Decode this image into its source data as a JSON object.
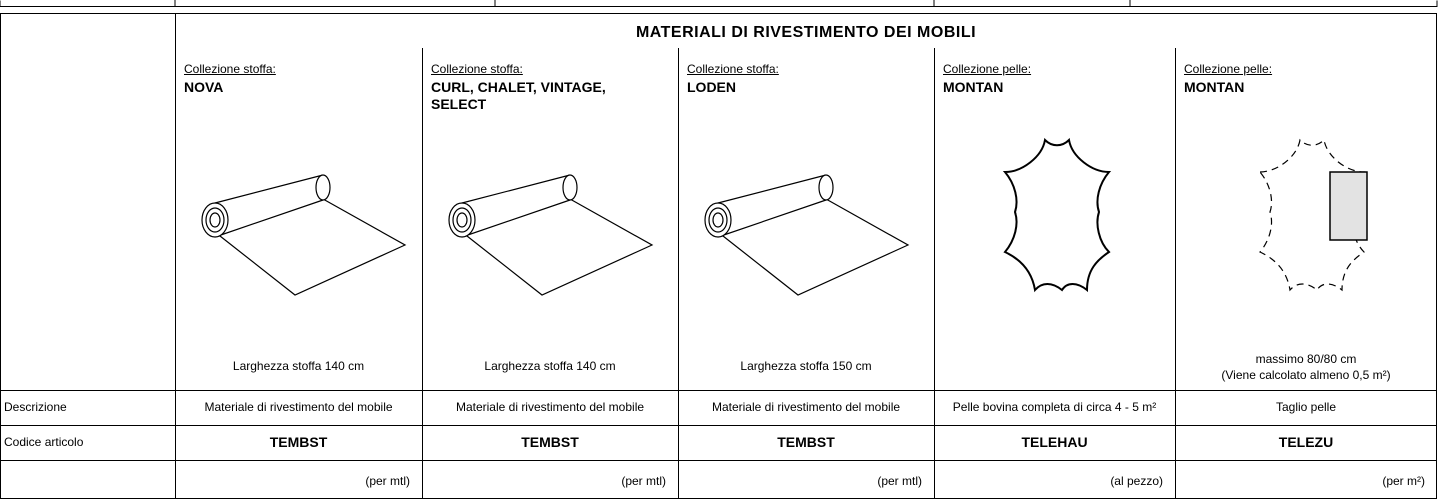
{
  "title": "MATERIALI DI RIVESTIMENTO DEI MOBILI",
  "row_labels": {
    "description": "Descrizione",
    "code": "Codice articolo"
  },
  "columns": [
    {
      "label": "Collezione stoffa:",
      "name": "NOVA",
      "note": "Larghezza stoffa 140 cm",
      "description": "Materiale di rivestimento del mobile",
      "code": "TEMBST",
      "unit": "(per mtl)"
    },
    {
      "label": "Collezione stoffa:",
      "name": "CURL, CHALET, VINTAGE, SELECT",
      "note": "Larghezza stoffa 140 cm",
      "description": "Materiale di rivestimento del mobile",
      "code": "TEMBST",
      "unit": "(per mtl)"
    },
    {
      "label": "Collezione stoffa:",
      "name": "LODEN",
      "note": "Larghezza stoffa 150 cm",
      "description": "Materiale di rivestimento del mobile",
      "code": "TEMBST",
      "unit": "(per mtl)"
    },
    {
      "label": "Collezione pelle:",
      "name": "MONTAN",
      "description": "Pelle bovina completa di circa 4 - 5 m²",
      "code": "TELEHAU",
      "unit": "(al pezzo)"
    },
    {
      "label": "Collezione pelle:",
      "name": "MONTAN",
      "note": [
        "massimo 80/80 cm",
        "(Viene calcolato almeno 0,5 m²)"
      ],
      "description": "Taglio pelle",
      "code": "TELEZU",
      "unit": "(per m²)"
    }
  ]
}
